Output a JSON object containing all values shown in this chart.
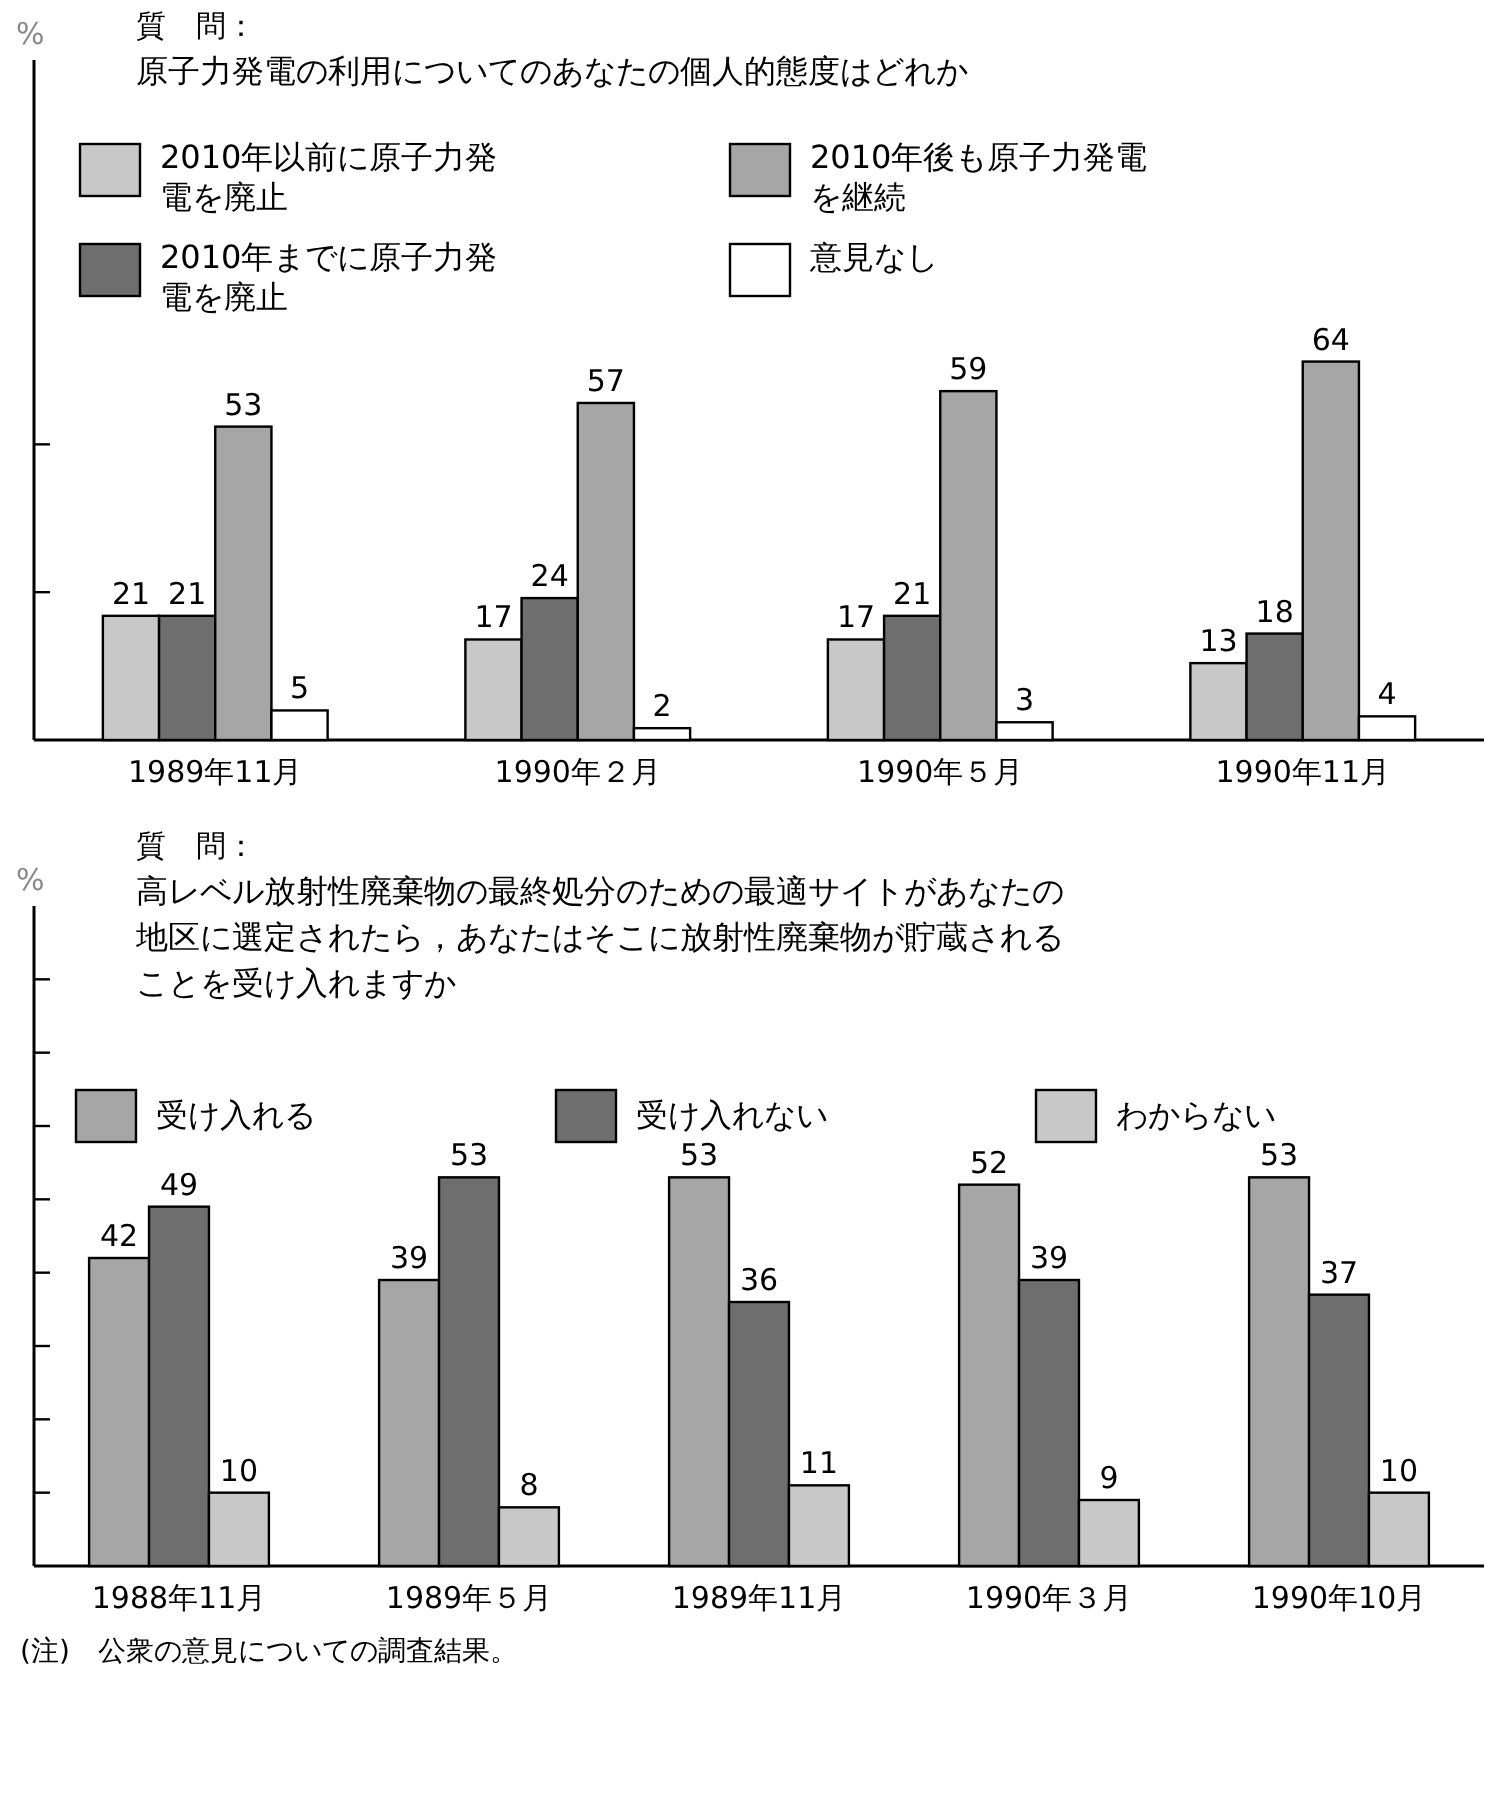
{
  "chart_data": [
    {
      "type": "bar",
      "title": "質　問：",
      "subtitle": "原子力発電の利用についてのあなたの個人的態度はどれか",
      "ylabel": "%",
      "categories": [
        "1989年11月",
        "1990年２月",
        "1990年５月",
        "1990年11月"
      ],
      "series": [
        {
          "name": "2010年以前に原子力発電を廃止",
          "color": "#c8c8c8",
          "values": [
            21,
            17,
            17,
            13
          ]
        },
        {
          "name": "2010年までに原子力発電を廃止",
          "color": "#6e6e6e",
          "values": [
            21,
            24,
            21,
            18
          ]
        },
        {
          "name": "2010年後も原子力発電を継続",
          "color": "#a6a6a6",
          "values": [
            53,
            57,
            59,
            64
          ]
        },
        {
          "name": "意見なし",
          "color": "#ffffff",
          "values": [
            5,
            2,
            3,
            4
          ]
        }
      ],
      "ylim": [
        0,
        115
      ],
      "yticks": [
        {
          "value": 25,
          "label": null
        },
        {
          "value": 50,
          "label": null
        }
      ],
      "data_labels": true,
      "legend": "top",
      "tick_labels": "x"
    },
    {
      "type": "bar",
      "title": "質　問：",
      "subtitle": "高レベル放射性廃棄物の最終処分のための最適サイトがあなたの地区に選定されたら，あなたはそこに放射性廃棄物が貯蔵されることを受け入れますか",
      "ylabel": "%",
      "categories": [
        "1988年11月",
        "1989年５月",
        "1989年11月",
        "1990年３月",
        "1990年10月"
      ],
      "series": [
        {
          "name": "受け入れる",
          "color": "#a6a6a6",
          "values": [
            42,
            39,
            53,
            52,
            53
          ]
        },
        {
          "name": "受け入れない",
          "color": "#6e6e6e",
          "values": [
            49,
            53,
            36,
            39,
            37
          ]
        },
        {
          "name": "わからない",
          "color": "#c8c8c8",
          "values": [
            10,
            8,
            11,
            9,
            10
          ]
        }
      ],
      "ylim": [
        0,
        90
      ],
      "yticks": [
        {
          "value": 10,
          "label": null
        },
        {
          "value": 20,
          "label": null
        },
        {
          "value": 30,
          "label": null
        },
        {
          "value": 40,
          "label": null
        },
        {
          "value": 50,
          "label": null
        },
        {
          "value": 60,
          "label": null
        },
        {
          "value": 70,
          "label": null
        },
        {
          "value": 80,
          "label": null
        }
      ],
      "data_labels": true,
      "legend": "top",
      "tick_labels": "x",
      "annotations": [
        "(注)　公衆の意見についての調査結果。"
      ]
    }
  ]
}
